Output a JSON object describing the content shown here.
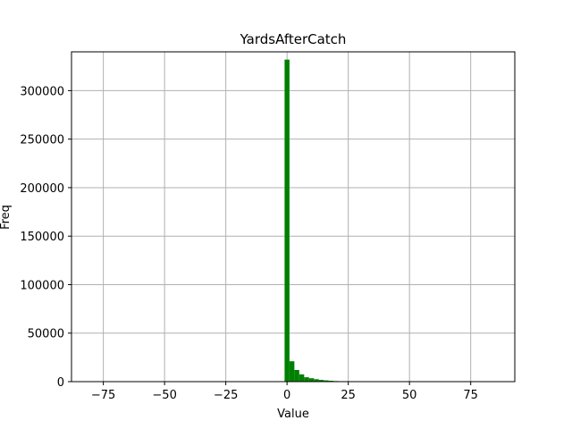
{
  "chart_data": {
    "type": "bar",
    "title": "YardsAfterCatch",
    "xlabel": "Value",
    "ylabel": "Freq",
    "xlim": [
      -88,
      93
    ],
    "ylim": [
      0,
      340000
    ],
    "grid": true,
    "bar_color": "#008000",
    "grid_color": "#b0b0b0",
    "bin_width": 2,
    "x_ticks": [
      -75,
      -50,
      -25,
      0,
      25,
      50,
      75
    ],
    "x_tick_labels": [
      "−75",
      "−50",
      "−25",
      "0",
      "25",
      "50",
      "75"
    ],
    "y_ticks": [
      0,
      50000,
      100000,
      150000,
      200000,
      250000,
      300000
    ],
    "y_tick_labels": [
      "0",
      "50000",
      "100000",
      "150000",
      "200000",
      "250000",
      "300000"
    ],
    "bins": [
      {
        "x": -1,
        "value": 332000
      },
      {
        "x": 1,
        "value": 21000
      },
      {
        "x": 3,
        "value": 12000
      },
      {
        "x": 5,
        "value": 7500
      },
      {
        "x": 7,
        "value": 4500
      },
      {
        "x": 9,
        "value": 3500
      },
      {
        "x": 11,
        "value": 2500
      },
      {
        "x": 13,
        "value": 1800
      },
      {
        "x": 15,
        "value": 1300
      },
      {
        "x": 17,
        "value": 900
      },
      {
        "x": 19,
        "value": 600
      },
      {
        "x": 21,
        "value": 400
      },
      {
        "x": 23,
        "value": 300
      },
      {
        "x": 25,
        "value": 200
      },
      {
        "x": 27,
        "value": 150
      },
      {
        "x": 29,
        "value": 100
      }
    ]
  }
}
